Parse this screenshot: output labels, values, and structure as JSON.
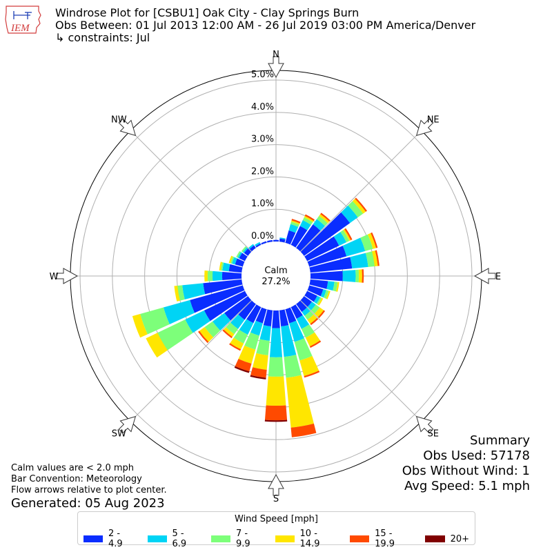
{
  "logo": {
    "text": "IEM",
    "icon": "iowa-state-outline-icon"
  },
  "title": {
    "line1": "Windrose Plot for [CSBU1] Oak City - Clay Springs Burn",
    "line2": "Obs Between: 01 Jul 2013 12:00 AM - 26 Jul 2019 03:00 PM America/Denver",
    "line3": "↳ constraints: Jul"
  },
  "summary": {
    "heading": "Summary",
    "obs_used": "Obs Used: 57178",
    "obs_without_wind": "Obs Without Wind: 1",
    "avg_speed": "Avg Speed: 5.1 mph"
  },
  "notes": {
    "calm": "Calm values are < 2.0 mph",
    "bar_convention": "Bar Convention: Meteorology",
    "flow_arrows": "Flow arrows relative to plot center."
  },
  "generated": "Generated: 05 Aug 2023",
  "legend": {
    "title": "Wind Speed [mph]",
    "items": [
      {
        "label": "2 - 4.9",
        "color": "#0a2dff"
      },
      {
        "label": "5 - 6.9",
        "color": "#00d4f5"
      },
      {
        "label": "7 - 9.9",
        "color": "#7dff7a"
      },
      {
        "label": "10 - 14.9",
        "color": "#ffe600"
      },
      {
        "label": "15 - 19.9",
        "color": "#ff4a00"
      },
      {
        "label": "20+",
        "color": "#800000"
      }
    ]
  },
  "chart_data": {
    "type": "windrose",
    "calm_label": "Calm",
    "calm_value": "27.2%",
    "calm_percent": 27.2,
    "rlim": [
      0,
      5.3
    ],
    "radial_ticks": [
      0,
      1,
      2,
      3,
      4,
      5
    ],
    "radial_tick_labels": [
      "0.0%",
      "1.0%",
      "2.0%",
      "3.0%",
      "4.0%",
      "5.0%"
    ],
    "direction_labels": [
      {
        "angle": 0,
        "label": "N"
      },
      {
        "angle": 45,
        "label": "NE"
      },
      {
        "angle": 90,
        "label": "E"
      },
      {
        "angle": 135,
        "label": "SE"
      },
      {
        "angle": 180,
        "label": "S"
      },
      {
        "angle": 225,
        "label": "SW"
      },
      {
        "angle": 270,
        "label": "W"
      },
      {
        "angle": 315,
        "label": "NW"
      }
    ],
    "bins": [
      "2 - 4.9",
      "5 - 6.9",
      "7 - 9.9",
      "10 - 14.9",
      "15 - 19.9",
      "20+"
    ],
    "colors": [
      "#0a2dff",
      "#00d4f5",
      "#7dff7a",
      "#ffe600",
      "#ff4a00",
      "#800000"
    ],
    "sector_width_deg": 10,
    "sectors": [
      {
        "dir": 0,
        "values": [
          0.05,
          0,
          0,
          0,
          0,
          0
        ]
      },
      {
        "dir": 10,
        "values": [
          0.1,
          0.03,
          0,
          0,
          0,
          0
        ]
      },
      {
        "dir": 20,
        "values": [
          0.4,
          0.2,
          0.08,
          0.04,
          0.05,
          0
        ]
      },
      {
        "dir": 30,
        "values": [
          0.65,
          0.2,
          0.1,
          0.05,
          0.05,
          0
        ]
      },
      {
        "dir": 40,
        "values": [
          0.9,
          0.2,
          0.12,
          0.07,
          0.05,
          0
        ]
      },
      {
        "dir": 50,
        "values": [
          1.75,
          0.3,
          0.2,
          0.1,
          0.05,
          0
        ]
      },
      {
        "dir": 60,
        "values": [
          1.1,
          0.25,
          0.1,
          0.05,
          0.05,
          0
        ]
      },
      {
        "dir": 70,
        "values": [
          1.2,
          0.6,
          0.25,
          0.1,
          0.05,
          0
        ]
      },
      {
        "dir": 80,
        "values": [
          1.3,
          0.5,
          0.2,
          0.1,
          0.05,
          0
        ]
      },
      {
        "dir": 90,
        "values": [
          1.0,
          0.4,
          0.1,
          0.1,
          0.05,
          0
        ]
      },
      {
        "dir": 100,
        "values": [
          0.55,
          0.2,
          0.1,
          0.05,
          0,
          0
        ]
      },
      {
        "dir": 110,
        "values": [
          0.45,
          0.1,
          0.08,
          0.05,
          0,
          0
        ]
      },
      {
        "dir": 120,
        "values": [
          0.35,
          0.1,
          0.05,
          0.05,
          0,
          0
        ]
      },
      {
        "dir": 130,
        "values": [
          0.3,
          0.15,
          0.15,
          0.15,
          0.05,
          0
        ]
      },
      {
        "dir": 140,
        "values": [
          0.3,
          0.15,
          0.15,
          0.15,
          0.05,
          0
        ]
      },
      {
        "dir": 150,
        "values": [
          0.4,
          0.35,
          0.3,
          0.3,
          0.05,
          0
        ]
      },
      {
        "dir": 160,
        "values": [
          0.45,
          0.6,
          0.6,
          0.5,
          0.05,
          0
        ]
      },
      {
        "dir": 170,
        "values": [
          0.5,
          0.95,
          0.65,
          1.55,
          0.3,
          0
        ]
      },
      {
        "dir": 180,
        "values": [
          0.55,
          0.9,
          0.6,
          0.9,
          0.45,
          0.05
        ]
      },
      {
        "dir": 190,
        "values": [
          0.5,
          0.45,
          0.45,
          0.45,
          0.25,
          0.05
        ]
      },
      {
        "dir": 200,
        "values": [
          0.45,
          0.4,
          0.45,
          0.45,
          0.25,
          0.05
        ]
      },
      {
        "dir": 210,
        "values": [
          0.55,
          0.4,
          0.3,
          0.2,
          0.05,
          0
        ]
      },
      {
        "dir": 220,
        "values": [
          0.6,
          0.35,
          0.2,
          0.1,
          0.05,
          0
        ]
      },
      {
        "dir": 230,
        "values": [
          0.9,
          0.45,
          0.3,
          0.2,
          0.05,
          0
        ]
      },
      {
        "dir": 240,
        "values": [
          1.4,
          0.65,
          0.95,
          0.4,
          0,
          0
        ]
      },
      {
        "dir": 250,
        "values": [
          1.7,
          0.85,
          0.75,
          0.25,
          0,
          0
        ]
      },
      {
        "dir": 260,
        "values": [
          1.2,
          0.65,
          0.15,
          0.1,
          0,
          0
        ]
      },
      {
        "dir": 270,
        "values": [
          0.6,
          0.3,
          0.15,
          0.1,
          0,
          0
        ]
      },
      {
        "dir": 280,
        "values": [
          0.4,
          0.2,
          0.05,
          0.05,
          0,
          0
        ]
      },
      {
        "dir": 290,
        "values": [
          0.25,
          0.1,
          0.05,
          0.05,
          0,
          0
        ]
      },
      {
        "dir": 300,
        "values": [
          0.2,
          0.05,
          0.05,
          0,
          0,
          0
        ]
      },
      {
        "dir": 310,
        "values": [
          0.15,
          0.05,
          0.05,
          0,
          0,
          0
        ]
      },
      {
        "dir": 320,
        "values": [
          0.1,
          0.05,
          0,
          0,
          0,
          0
        ]
      },
      {
        "dir": 330,
        "values": [
          0.05,
          0.05,
          0,
          0,
          0,
          0
        ]
      },
      {
        "dir": 340,
        "values": [
          0.05,
          0,
          0,
          0,
          0,
          0
        ]
      },
      {
        "dir": 350,
        "values": [
          0.05,
          0,
          0,
          0,
          0,
          0
        ]
      }
    ]
  }
}
